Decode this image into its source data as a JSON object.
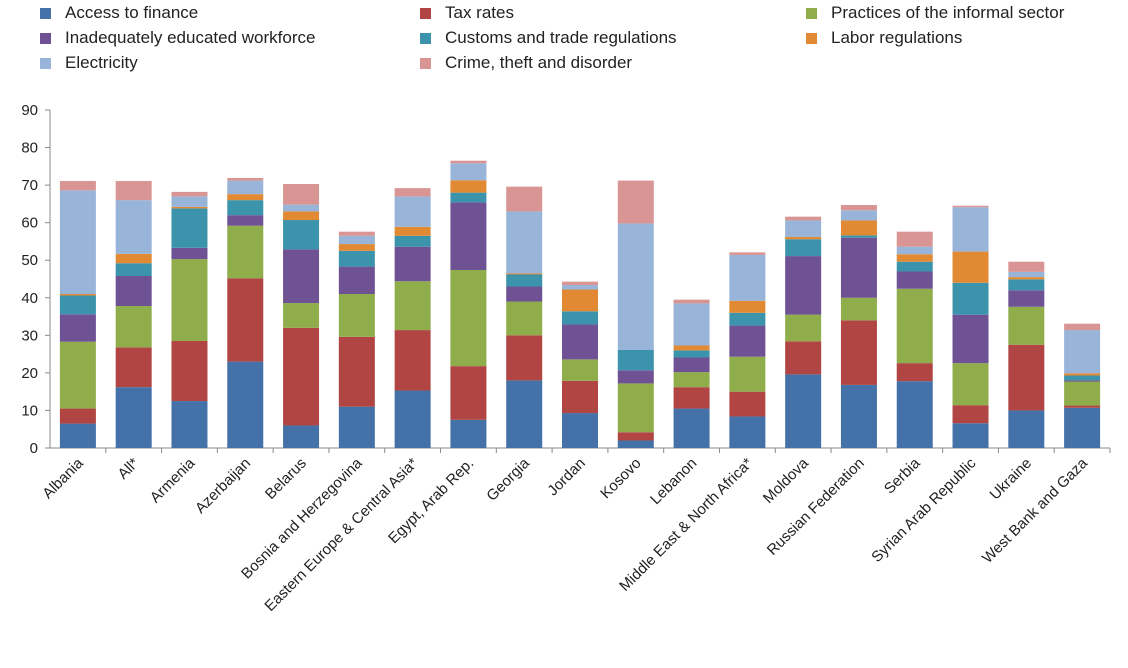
{
  "chart_data": {
    "type": "bar",
    "stacked": true,
    "legend_placement": "top",
    "ylim": [
      0,
      90
    ],
    "yticks": [
      "0",
      "10",
      "20",
      "30",
      "40",
      "50",
      "60",
      "70",
      "80",
      "90"
    ],
    "grid": false,
    "categories": [
      "Albania",
      "All*",
      "Armenia",
      "Azerbaijan",
      "Belarus",
      "Bosnia and Herzegovina",
      "Eastern Europe & Central Asia*",
      "Egypt, Arab Rep.",
      "Georgia",
      "Jordan",
      "Kosovo",
      "Lebanon",
      "Middle East & North Africa*",
      "Moldova",
      "Russian Federation",
      "Serbia",
      "Syrian Arab Republic",
      "Ukraine",
      "West Bank and Gaza"
    ],
    "series": [
      {
        "name": "Access to finance",
        "color": "#4472a8",
        "values": [
          6.5,
          16.2,
          12.5,
          23.0,
          6.0,
          11.0,
          15.3,
          7.5,
          18.0,
          9.3,
          2.0,
          10.5,
          8.4,
          19.6,
          16.8,
          17.8,
          6.6,
          10.0,
          10.7
        ]
      },
      {
        "name": "Tax rates",
        "color": "#b04543",
        "values": [
          4.0,
          10.6,
          16.0,
          22.2,
          26.0,
          18.6,
          16.1,
          14.3,
          12.0,
          8.6,
          2.2,
          5.7,
          6.6,
          8.8,
          17.2,
          4.8,
          4.8,
          17.5,
          0.6
        ]
      },
      {
        "name": "Practices of the informal sector",
        "color": "#8fad4b",
        "values": [
          17.8,
          11.0,
          21.8,
          14.0,
          6.6,
          11.4,
          13.0,
          25.6,
          9.0,
          5.7,
          13.0,
          4.0,
          9.3,
          7.1,
          6.0,
          19.8,
          11.2,
          10.1,
          6.4
        ]
      },
      {
        "name": "Inadequately educated workforce",
        "color": "#6e5294",
        "values": [
          7.3,
          8.0,
          3.0,
          2.8,
          14.3,
          7.3,
          9.2,
          18.0,
          4.0,
          9.3,
          3.5,
          3.9,
          8.3,
          15.6,
          16.0,
          4.6,
          12.9,
          4.4,
          0.3
        ]
      },
      {
        "name": "Customs and trade regulations",
        "color": "#3b94ab",
        "values": [
          5.0,
          3.4,
          10.5,
          4.0,
          7.8,
          4.2,
          2.9,
          2.6,
          3.2,
          3.5,
          5.4,
          1.9,
          3.4,
          4.5,
          0.6,
          2.6,
          8.5,
          2.9,
          1.3
        ]
      },
      {
        "name": "Labor regulations",
        "color": "#e18a33",
        "values": [
          0.4,
          2.5,
          0.4,
          1.6,
          2.3,
          1.8,
          2.4,
          3.3,
          0.3,
          5.8,
          0.0,
          1.3,
          3.2,
          0.6,
          4.0,
          2.0,
          8.3,
          0.6,
          0.6
        ]
      },
      {
        "name": "Electricity",
        "color": "#98b4d9",
        "values": [
          27.6,
          14.3,
          2.8,
          3.6,
          1.8,
          2.2,
          8.1,
          4.5,
          16.5,
          1.2,
          33.7,
          11.2,
          12.2,
          4.4,
          2.7,
          2.0,
          11.8,
          1.4,
          11.5
        ]
      },
      {
        "name": "Crime, theft and disorder",
        "color": "#d99594",
        "values": [
          2.5,
          5.1,
          1.2,
          0.7,
          5.5,
          1.1,
          2.2,
          0.7,
          6.6,
          0.9,
          11.4,
          1.0,
          0.7,
          1.0,
          1.4,
          4.0,
          0.4,
          2.7,
          1.7
        ]
      }
    ]
  }
}
